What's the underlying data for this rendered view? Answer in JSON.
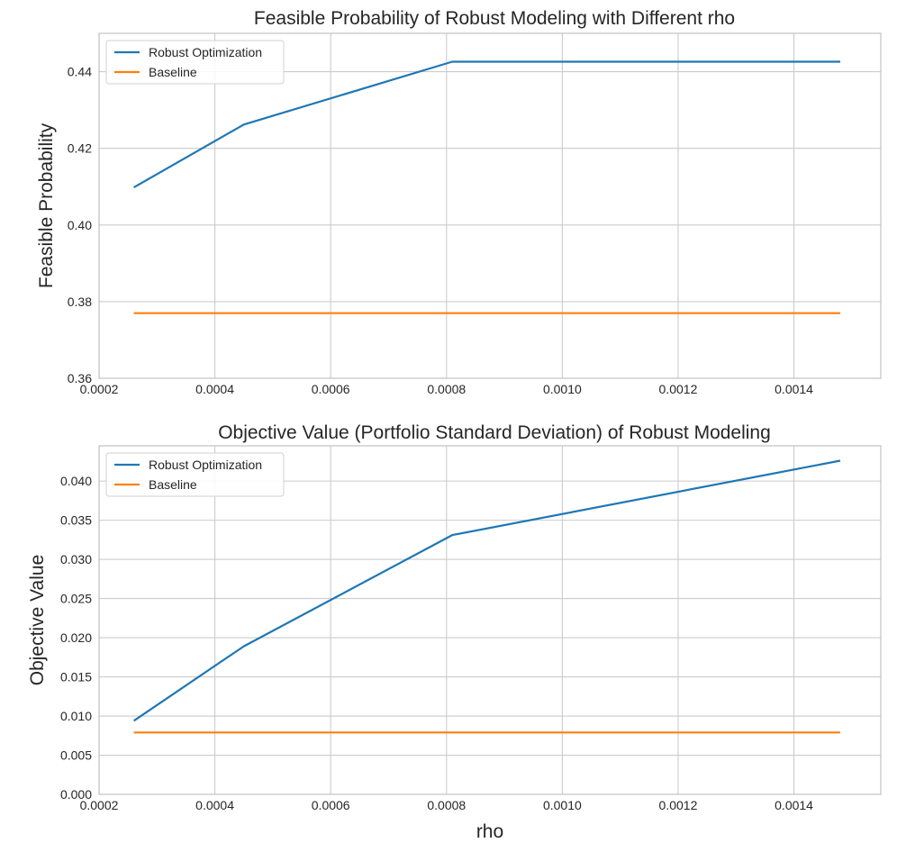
{
  "chart_data": [
    {
      "type": "line",
      "title": "Feasible Probability of Robust Modeling with Different rho",
      "xlabel": "",
      "ylabel": "Feasible Probability",
      "xlim": [
        0.0002,
        0.00155
      ],
      "ylim": [
        0.36,
        0.45
      ],
      "xticks": [
        "0.0002",
        "0.0004",
        "0.0006",
        "0.0008",
        "0.0010",
        "0.0012",
        "0.0014"
      ],
      "yticks": [
        "0.36",
        "0.38",
        "0.40",
        "0.42",
        "0.44"
      ],
      "grid": true,
      "legend": "top-left",
      "series": [
        {
          "name": "Robust Optimization",
          "color": "#1f77b4",
          "x": [
            0.00026,
            0.00045,
            0.00081,
            0.00148
          ],
          "y": [
            0.4098,
            0.4262,
            0.4426,
            0.4426
          ]
        },
        {
          "name": "Baseline",
          "color": "#ff7f0e",
          "x": [
            0.00026,
            0.00148
          ],
          "y": [
            0.377,
            0.377
          ]
        }
      ]
    },
    {
      "type": "line",
      "title": "Objective Value (Portfolio Standard Deviation) of Robust Modeling",
      "xlabel": "rho",
      "ylabel": "Objective Value",
      "xlim": [
        0.0002,
        0.00155
      ],
      "ylim": [
        0.0,
        0.0445
      ],
      "xticks": [
        "0.0002",
        "0.0004",
        "0.0006",
        "0.0008",
        "0.0010",
        "0.0012",
        "0.0014"
      ],
      "yticks": [
        "0.000",
        "0.005",
        "0.010",
        "0.015",
        "0.020",
        "0.025",
        "0.030",
        "0.035",
        "0.040"
      ],
      "grid": true,
      "legend": "top-left",
      "series": [
        {
          "name": "Robust Optimization",
          "color": "#1f77b4",
          "x": [
            0.00026,
            0.00045,
            0.00081,
            0.00148
          ],
          "y": [
            0.0094,
            0.0189,
            0.0331,
            0.0426
          ]
        },
        {
          "name": "Baseline",
          "color": "#ff7f0e",
          "x": [
            0.00026,
            0.00148
          ],
          "y": [
            0.0079,
            0.0079
          ]
        }
      ]
    }
  ]
}
